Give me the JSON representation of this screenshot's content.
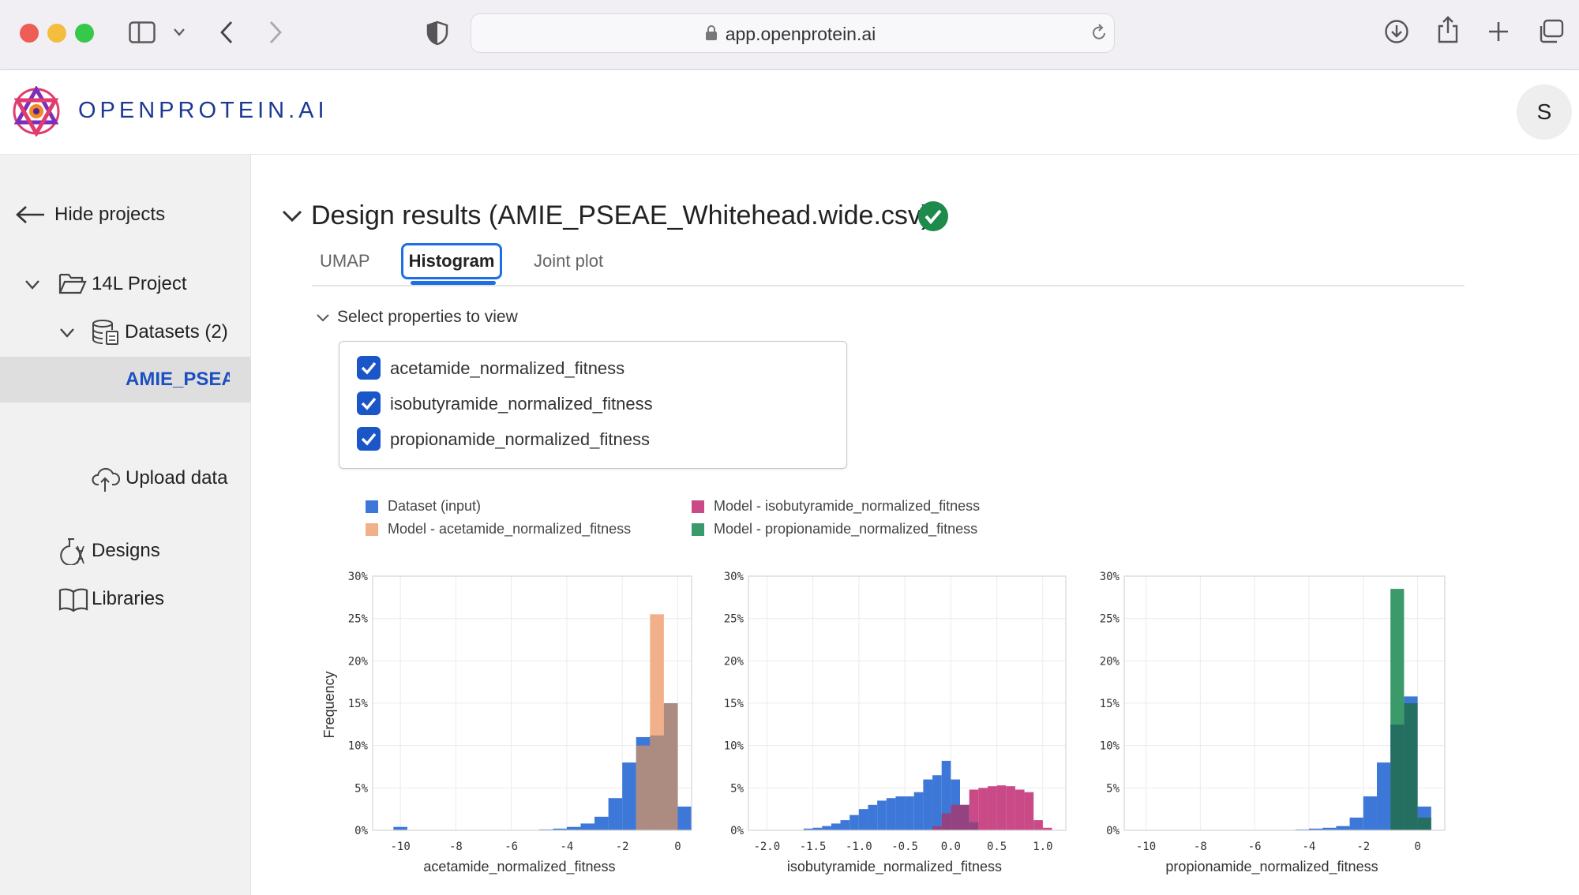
{
  "browser": {
    "url": "app.openprotein.ai"
  },
  "header": {
    "brand": "OPENPROTEIN.AI",
    "avatar_initial": "S"
  },
  "sidebar": {
    "hide_projects": "Hide projects",
    "project": "14L Project",
    "datasets": "Datasets (2)",
    "dataset_item": "AMIE_PSEAE",
    "upload": "Upload data",
    "designs": "Designs",
    "libraries": "Libraries"
  },
  "main": {
    "title": "Design results (AMIE_PSEAE_Whitehead.wide.csv)",
    "tabs": [
      "UMAP",
      "Histogram",
      "Joint plot"
    ],
    "active_tab": "Histogram",
    "properties_toggle": "Select properties to view",
    "properties": [
      {
        "label": "acetamide_normalized_fitness",
        "checked": true
      },
      {
        "label": "isobutyramide_normalized_fitness",
        "checked": true
      },
      {
        "label": "propionamide_normalized_fitness",
        "checked": true
      }
    ]
  },
  "legend": [
    {
      "label": "Dataset (input)",
      "color": "#3d78d8"
    },
    {
      "label": "Model - acetamide_normalized_fitness",
      "color": "#f2b08a"
    },
    {
      "label": "Model - isobutyramide_normalized_fitness",
      "color": "#c94a86"
    },
    {
      "label": "Model - propionamide_normalized_fitness",
      "color": "#3a9a6a"
    }
  ],
  "colors": {
    "dataset": "#3d78d8",
    "acetamide": "#f2b08a",
    "isobutyramide": "#c94a86",
    "propionamide": "#3a9a6a",
    "overlap_acetamide": "#b58d7a",
    "overlap_isobutyramide": "#9b3f7a",
    "overlap_propionamide": "#226f56",
    "accent": "#1e6fe6",
    "success": "#1e8a4c"
  },
  "chart_data": [
    {
      "type": "bar",
      "ylabel": "Frequency",
      "xlabel": "acetamide_normalized_fitness",
      "xlim": [
        -11,
        0.5
      ],
      "ylim": [
        0,
        0.3
      ],
      "xticks": [
        -10,
        -8,
        -6,
        -4,
        -2,
        0
      ],
      "xtick_labels": [
        "-10",
        "-8",
        "-6",
        "-4",
        "-2",
        "0"
      ],
      "yticks": [
        0,
        0.05,
        0.1,
        0.15,
        0.2,
        0.25,
        0.3
      ],
      "ytick_labels": [
        "0%",
        "5%",
        "10%",
        "15%",
        "20%",
        "25%",
        "30%"
      ],
      "bin_width": 0.5,
      "series": [
        {
          "name": "Dataset (input)",
          "color": "dataset",
          "bin_starts": [
            -10.25,
            -5,
            -4.5,
            -4,
            -3.5,
            -3,
            -2.5,
            -2,
            -1.5,
            -1,
            -0.5,
            0
          ],
          "values": [
            0.004,
            0.001,
            0.002,
            0.004,
            0.008,
            0.016,
            0.038,
            0.08,
            0.11,
            0.112,
            0.15,
            0.028
          ]
        },
        {
          "name": "Model - acetamide_normalized_fitness",
          "color": "acetamide",
          "bin_starts": [
            -1.5,
            -1,
            -0.5
          ],
          "values": [
            0.1,
            0.255,
            0.15
          ]
        }
      ]
    },
    {
      "type": "bar",
      "xlabel": "isobutyramide_normalized_fitness",
      "xlim": [
        -2.2,
        1.25
      ],
      "ylim": [
        0,
        0.3
      ],
      "xticks": [
        -2.0,
        -1.5,
        -1.0,
        -0.5,
        0.0,
        0.5,
        1.0
      ],
      "xtick_labels": [
        "-2.0",
        "-1.5",
        "-1.0",
        "-0.5",
        "0.0",
        "0.5",
        "1.0"
      ],
      "yticks": [
        0,
        0.05,
        0.1,
        0.15,
        0.2,
        0.25,
        0.3
      ],
      "ytick_labels": [
        "0%",
        "5%",
        "10%",
        "15%",
        "20%",
        "25%",
        "30%"
      ],
      "bin_width": 0.1,
      "series": [
        {
          "name": "Dataset (input)",
          "color": "dataset",
          "bin_starts": [
            -1.6,
            -1.5,
            -1.4,
            -1.3,
            -1.2,
            -1.1,
            -1.0,
            -0.9,
            -0.8,
            -0.7,
            -0.6,
            -0.5,
            -0.4,
            -0.3,
            -0.2,
            -0.1,
            0.0,
            0.1,
            0.2
          ],
          "values": [
            0.002,
            0.003,
            0.005,
            0.008,
            0.012,
            0.018,
            0.025,
            0.03,
            0.035,
            0.038,
            0.04,
            0.04,
            0.045,
            0.06,
            0.065,
            0.082,
            0.06,
            0.03,
            0.01
          ]
        },
        {
          "name": "Model - isobutyramide_normalized_fitness",
          "color": "isobutyramide",
          "bin_starts": [
            -0.2,
            -0.1,
            0.0,
            0.1,
            0.2,
            0.3,
            0.4,
            0.5,
            0.6,
            0.7,
            0.8,
            0.9,
            1.0
          ],
          "values": [
            0.005,
            0.02,
            0.03,
            0.03,
            0.048,
            0.05,
            0.052,
            0.053,
            0.052,
            0.048,
            0.045,
            0.012,
            0.003
          ]
        }
      ]
    },
    {
      "type": "bar",
      "xlabel": "propionamide_normalized_fitness",
      "xlim": [
        -10.8,
        1.0
      ],
      "ylim": [
        0,
        0.3
      ],
      "xticks": [
        -10,
        -8,
        -6,
        -4,
        -2,
        0
      ],
      "xtick_labels": [
        "-10",
        "-8",
        "-6",
        "-4",
        "-2",
        "0"
      ],
      "yticks": [
        0,
        0.05,
        0.1,
        0.15,
        0.2,
        0.25,
        0.3
      ],
      "ytick_labels": [
        "0%",
        "5%",
        "10%",
        "15%",
        "20%",
        "25%",
        "30%"
      ],
      "bin_width": 0.5,
      "series": [
        {
          "name": "Dataset (input)",
          "color": "dataset",
          "bin_starts": [
            -4.5,
            -4,
            -3.5,
            -3,
            -2.5,
            -2,
            -1.5,
            -1,
            -0.5,
            0
          ],
          "values": [
            0.001,
            0.002,
            0.003,
            0.005,
            0.015,
            0.04,
            0.08,
            0.125,
            0.158,
            0.028
          ]
        },
        {
          "name": "Model - propionamide_normalized_fitness",
          "color": "propionamide",
          "bin_starts": [
            -1,
            -0.5,
            0
          ],
          "values": [
            0.285,
            0.15,
            0.015
          ]
        }
      ]
    }
  ]
}
